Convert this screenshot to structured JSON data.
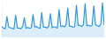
{
  "chart_data": {
    "type": "area",
    "color": "#3399dd",
    "tick_labels": false,
    "grid": false,
    "ylim": [
      0,
      100
    ],
    "values": [
      30,
      26,
      24,
      58,
      28,
      27,
      25,
      23,
      62,
      26,
      26,
      24,
      30,
      55,
      25,
      28,
      25,
      27,
      64,
      29,
      30,
      27,
      25,
      70,
      28,
      29,
      26,
      31,
      66,
      27,
      30,
      28,
      26,
      78,
      30,
      32,
      29,
      35,
      82,
      31,
      31,
      28,
      30,
      90,
      33,
      33,
      30,
      36,
      95,
      32,
      34,
      31,
      33,
      88,
      35,
      33,
      30,
      37,
      97,
      34
    ]
  }
}
